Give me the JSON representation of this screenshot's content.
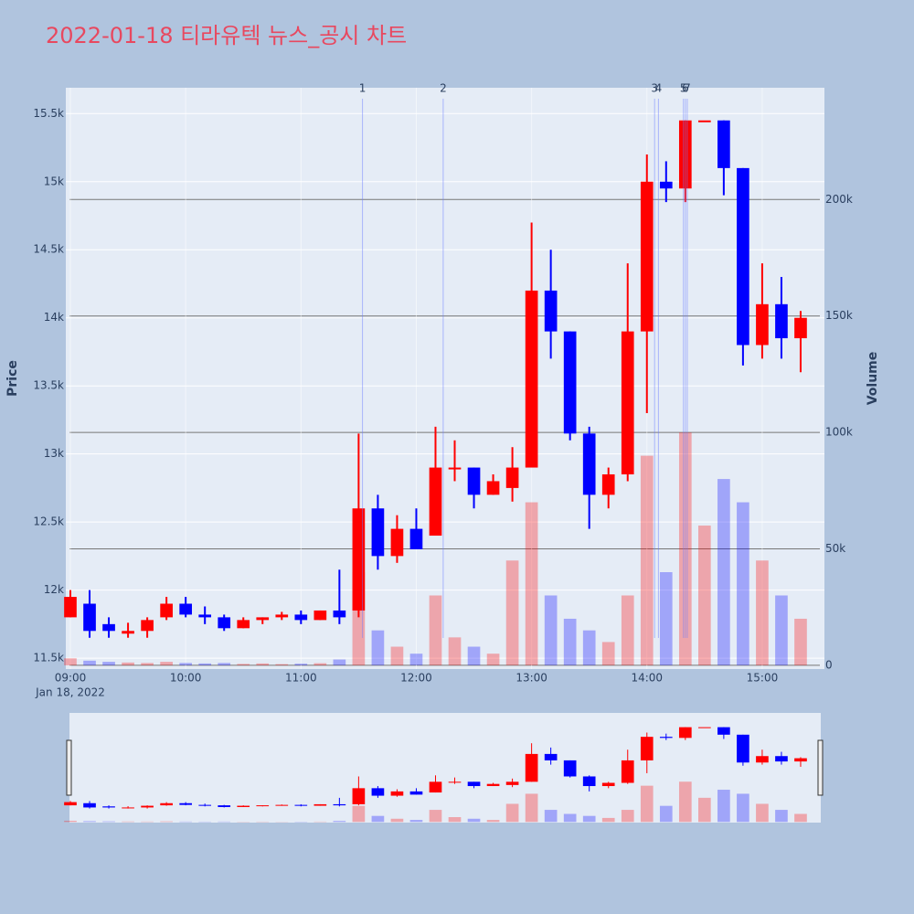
{
  "chart_data": {
    "type": "candlestick",
    "title": "2022-01-18 티라유텍 뉴스_공시 차트",
    "y_label": "Price",
    "y2_label": "Volume",
    "date_label": "Jan 18, 2022",
    "up_color": "#ff0000",
    "down_color": "#0000ff",
    "x": [
      "09:00",
      "09:10",
      "09:20",
      "09:30",
      "09:40",
      "09:50",
      "10:00",
      "10:10",
      "10:20",
      "10:30",
      "10:40",
      "10:50",
      "11:00",
      "11:10",
      "11:20",
      "11:30",
      "11:40",
      "11:50",
      "12:00",
      "12:10",
      "12:20",
      "12:30",
      "12:40",
      "12:50",
      "13:00",
      "13:10",
      "13:20",
      "13:30",
      "13:40",
      "13:50",
      "14:00",
      "14:10",
      "14:20",
      "14:30",
      "14:40",
      "14:50",
      "15:00",
      "15:10",
      "15:20"
    ],
    "open": [
      11800,
      11900,
      11750,
      11680,
      11700,
      11800,
      11900,
      11820,
      11800,
      11720,
      11780,
      11800,
      11820,
      11780,
      11850,
      11850,
      12600,
      12250,
      12450,
      12400,
      12900,
      12900,
      12700,
      12750,
      12900,
      14200,
      13900,
      13150,
      12700,
      12850,
      13900,
      15000,
      14950,
      15450,
      15450,
      15100,
      13800,
      14100,
      13850
    ],
    "high": [
      12000,
      12000,
      11800,
      11760,
      11800,
      11950,
      11950,
      11880,
      11820,
      11800,
      11800,
      11840,
      11850,
      11850,
      12150,
      13150,
      12700,
      12550,
      12600,
      13200,
      13100,
      12900,
      12850,
      13050,
      14700,
      14500,
      13900,
      13200,
      12900,
      14400,
      15200,
      15150,
      15450,
      15450,
      15450,
      15100,
      14400,
      14300,
      14050
    ],
    "low": [
      11800,
      11650,
      11650,
      11650,
      11650,
      11780,
      11800,
      11750,
      11700,
      11720,
      11750,
      11780,
      11750,
      11780,
      11750,
      11800,
      12150,
      12200,
      12300,
      12400,
      12800,
      12600,
      12700,
      12650,
      12900,
      13700,
      13100,
      12450,
      12600,
      12800,
      13300,
      14850,
      14850,
      15450,
      14900,
      13650,
      13700,
      13700,
      13600
    ],
    "close": [
      11950,
      11700,
      11700,
      11700,
      11780,
      11900,
      11820,
      11800,
      11720,
      11780,
      11800,
      11820,
      11780,
      11850,
      11800,
      12600,
      12250,
      12450,
      12300,
      12900,
      12900,
      12700,
      12800,
      12900,
      14200,
      13900,
      13150,
      12700,
      12850,
      13900,
      15000,
      14950,
      15450,
      15450,
      15100,
      13800,
      14100,
      13850,
      14000
    ],
    "volume": [
      3000,
      2000,
      1500,
      1200,
      1000,
      1500,
      1000,
      800,
      1000,
      600,
      800,
      500,
      700,
      900,
      2500,
      40000,
      15000,
      8000,
      5000,
      30000,
      12000,
      8000,
      5000,
      45000,
      70000,
      30000,
      20000,
      15000,
      10000,
      30000,
      90000,
      40000,
      100000,
      60000,
      80000,
      70000,
      45000,
      30000,
      20000
    ],
    "xlim": [
      "09:00",
      "15:30"
    ],
    "xticks": [
      "09:00",
      "10:00",
      "11:00",
      "12:00",
      "13:00",
      "14:00",
      "15:00"
    ],
    "ylim": [
      11420,
      15690
    ],
    "yticks": [
      {
        "value": 11500,
        "label": "11.5k"
      },
      {
        "value": 12000,
        "label": "12k"
      },
      {
        "value": 12500,
        "label": "12.5k"
      },
      {
        "value": 13000,
        "label": "13k"
      },
      {
        "value": 13500,
        "label": "13.5k"
      },
      {
        "value": 14000,
        "label": "14k"
      },
      {
        "value": 14500,
        "label": "14.5k"
      },
      {
        "value": 15000,
        "label": "15k"
      },
      {
        "value": 15500,
        "label": "15.5k"
      }
    ],
    "y2lim": [
      -1600,
      248000
    ],
    "y2ticks": [
      0,
      {
        "value": 50000,
        "label": "50k"
      },
      {
        "value": 100000,
        "label": "100k"
      },
      {
        "value": 150000,
        "label": "150k"
      },
      {
        "value": 200000,
        "label": "200k"
      }
    ],
    "news": [
      {
        "x": "11:32",
        "label": "1"
      },
      {
        "x": "12:14",
        "label": "2"
      },
      {
        "x": "14:04",
        "label": "3"
      },
      {
        "x": "14:06",
        "label": "4"
      },
      {
        "x": "14:19",
        "label": "5"
      },
      {
        "x": "14:20",
        "label": "6"
      },
      {
        "x": "14:21",
        "label": "7"
      }
    ]
  }
}
